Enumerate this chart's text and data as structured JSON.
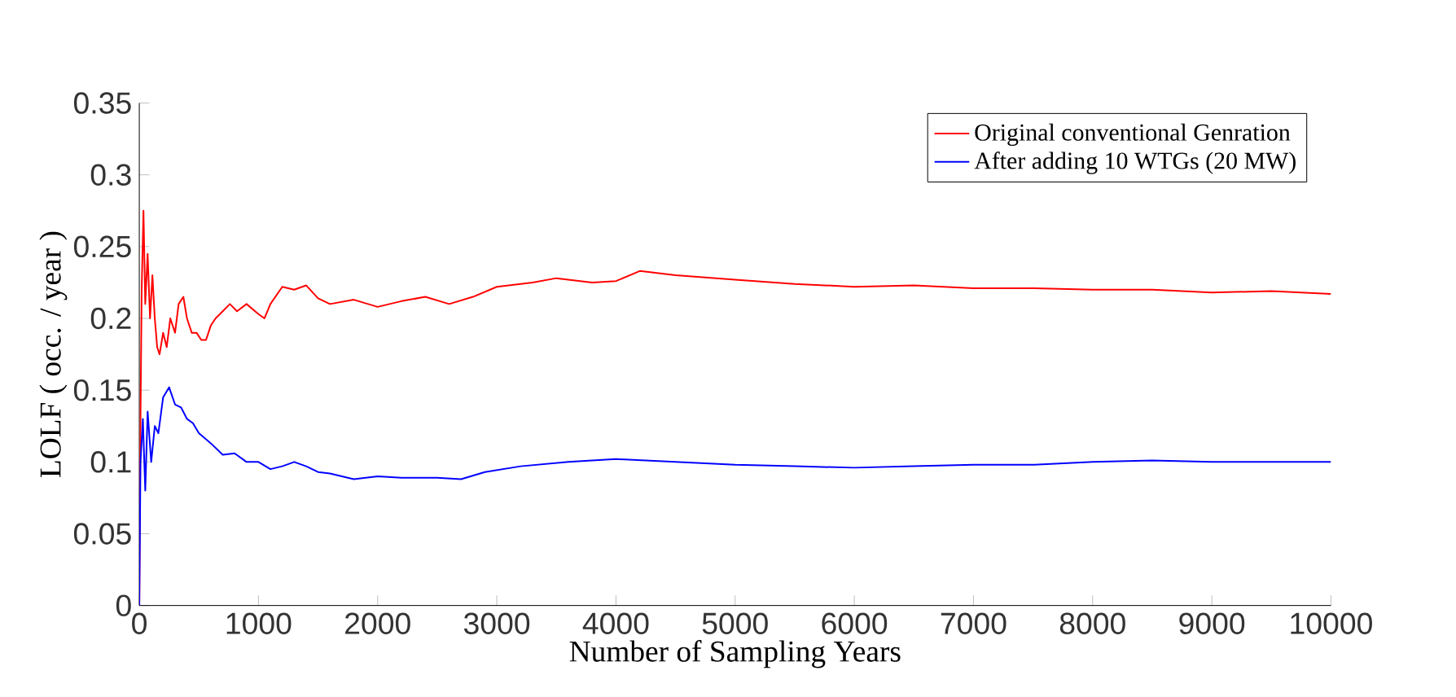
{
  "chart_data": {
    "type": "line",
    "xlabel": "Number of Sampling Years",
    "ylabel": "LOLF ( occ. / year )",
    "xlim": [
      0,
      10000
    ],
    "ylim": [
      0,
      0.35
    ],
    "xticks": [
      0,
      1000,
      2000,
      3000,
      4000,
      5000,
      6000,
      7000,
      8000,
      9000,
      10000
    ],
    "yticks": [
      0,
      0.05,
      0.1,
      0.15,
      0.2,
      0.25,
      0.3,
      0.35
    ],
    "legend": "top right",
    "grid": false,
    "marker": "none",
    "line_style": "solid",
    "series": [
      {
        "name": "Original conventional Genration",
        "color": "#ff0000",
        "x": [
          0,
          10,
          20,
          35,
          50,
          70,
          90,
          110,
          130,
          150,
          170,
          200,
          230,
          260,
          300,
          330,
          370,
          400,
          440,
          480,
          520,
          560,
          600,
          640,
          700,
          760,
          820,
          900,
          1000,
          1050,
          1100,
          1200,
          1300,
          1400,
          1500,
          1600,
          1800,
          2000,
          2200,
          2400,
          2600,
          2800,
          3000,
          3300,
          3500,
          3800,
          4000,
          4200,
          4500,
          5000,
          5500,
          6000,
          6500,
          7000,
          7500,
          8000,
          8500,
          9000,
          9500,
          10000
        ],
        "values": [
          0,
          0.13,
          0.22,
          0.275,
          0.21,
          0.245,
          0.2,
          0.23,
          0.2,
          0.18,
          0.175,
          0.19,
          0.18,
          0.2,
          0.19,
          0.21,
          0.215,
          0.2,
          0.19,
          0.19,
          0.185,
          0.185,
          0.195,
          0.2,
          0.205,
          0.21,
          0.205,
          0.21,
          0.203,
          0.2,
          0.21,
          0.222,
          0.22,
          0.223,
          0.214,
          0.21,
          0.213,
          0.208,
          0.212,
          0.215,
          0.21,
          0.215,
          0.222,
          0.225,
          0.228,
          0.225,
          0.226,
          0.233,
          0.23,
          0.227,
          0.224,
          0.222,
          0.223,
          0.221,
          0.221,
          0.22,
          0.22,
          0.218,
          0.219,
          0.217
        ]
      },
      {
        "name": "After adding 10 WTGs (20 MW)",
        "color": "#0000ff",
        "x": [
          0,
          10,
          30,
          50,
          70,
          100,
          130,
          160,
          200,
          250,
          300,
          350,
          400,
          450,
          500,
          600,
          700,
          800,
          900,
          1000,
          1100,
          1200,
          1300,
          1400,
          1500,
          1600,
          1800,
          2000,
          2200,
          2500,
          2700,
          2900,
          3200,
          3600,
          4000,
          4500,
          5000,
          5500,
          6000,
          6500,
          7000,
          7500,
          8000,
          8500,
          9000,
          9500,
          10000
        ],
        "values": [
          0,
          0.1,
          0.13,
          0.08,
          0.135,
          0.1,
          0.125,
          0.12,
          0.145,
          0.152,
          0.14,
          0.138,
          0.13,
          0.127,
          0.12,
          0.113,
          0.105,
          0.106,
          0.1,
          0.1,
          0.095,
          0.097,
          0.1,
          0.097,
          0.093,
          0.092,
          0.088,
          0.09,
          0.089,
          0.089,
          0.088,
          0.093,
          0.097,
          0.1,
          0.102,
          0.1,
          0.098,
          0.097,
          0.096,
          0.097,
          0.098,
          0.098,
          0.1,
          0.101,
          0.1,
          0.1,
          0.1
        ]
      }
    ]
  }
}
